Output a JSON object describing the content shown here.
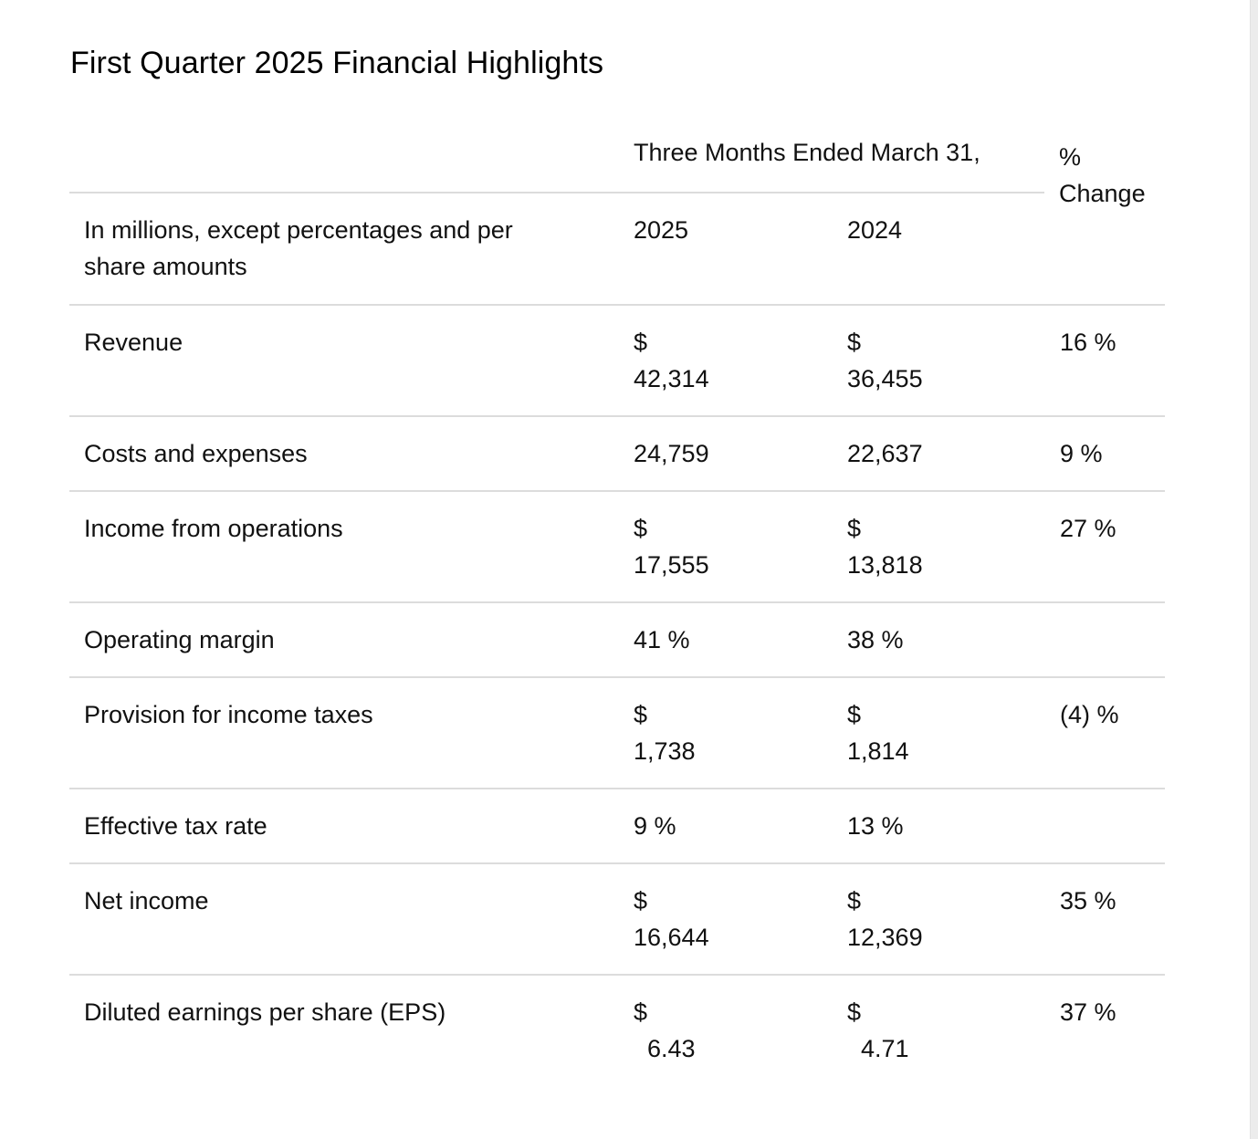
{
  "title": "First Quarter 2025 Financial Highlights",
  "header": {
    "period": "Three Months Ended March 31,",
    "change_line1": "%",
    "change_line2": "Change",
    "description_line1": "In millions, except percentages and per",
    "description_line2": "share amounts",
    "year_current": "2025",
    "year_prior": "2024"
  },
  "rows": [
    {
      "label": "Revenue",
      "cur_2025": "$",
      "val_2025": "42,314",
      "cur_2024": "$",
      "val_2024": "36,455",
      "change": "16 %"
    },
    {
      "label": "Costs and expenses",
      "val_2025": "24,759",
      "val_2024": "22,637",
      "change": "9 %"
    },
    {
      "label": "Income from operations",
      "cur_2025": "$",
      "val_2025": "17,555",
      "cur_2024": "$",
      "val_2024": "13,818",
      "change": "27 %"
    },
    {
      "label": "Operating margin",
      "val_2025": "41 %",
      "val_2024": "38 %",
      "change": ""
    },
    {
      "label": "Provision for income taxes",
      "cur_2025": "$",
      "val_2025": "1,738",
      "cur_2024": "$",
      "val_2024": "1,814",
      "change": "(4) %"
    },
    {
      "label": "Effective tax rate",
      "val_2025": "9 %",
      "val_2024": "13 %",
      "change": ""
    },
    {
      "label": "Net income",
      "cur_2025": "$",
      "val_2025": "16,644",
      "cur_2024": "$",
      "val_2024": "12,369",
      "change": "35 %"
    },
    {
      "label": "Diluted earnings per share (EPS)",
      "cur_2025": "$",
      "val_2025": "6.43",
      "cur_2024": "$",
      "val_2024": "4.71",
      "change": "37 %"
    }
  ]
}
